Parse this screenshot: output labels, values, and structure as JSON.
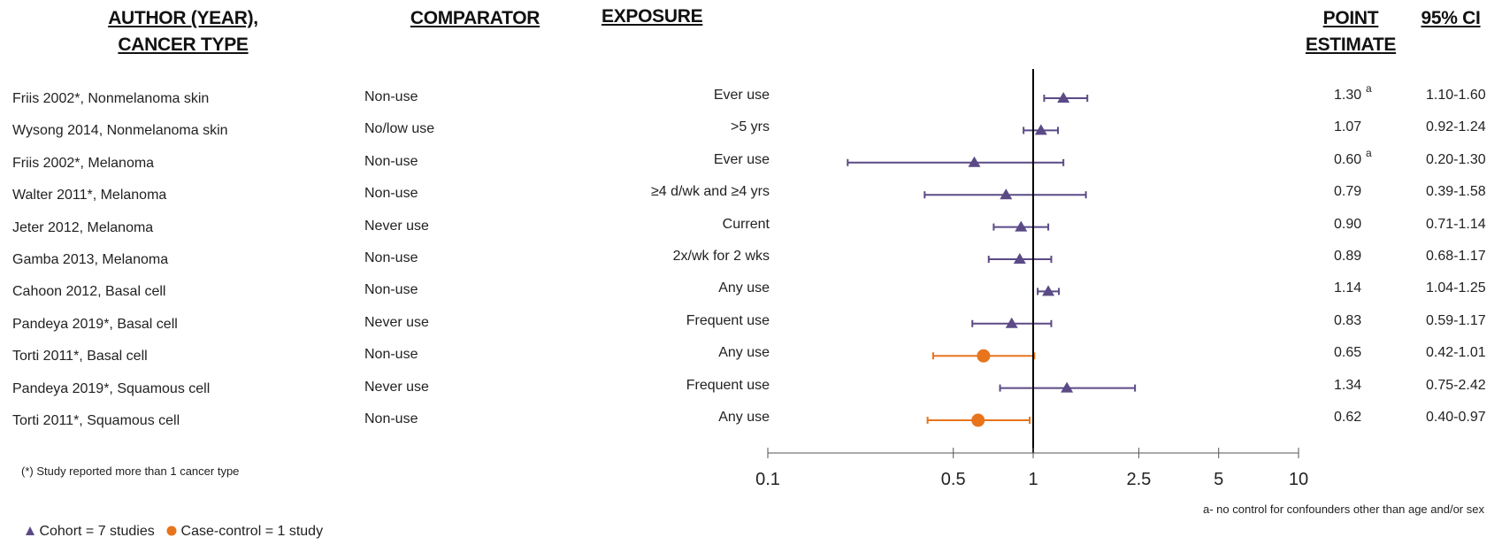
{
  "headers": {
    "author": [
      "AUTHOR (YEAR),",
      "CANCER TYPE"
    ],
    "comparator": "COMPARATOR",
    "exposure": "EXPOSURE",
    "point_estimate": [
      "POINT",
      "ESTIMATE"
    ],
    "ci": "95% CI"
  },
  "footnote_star": "(*) Study reported more than 1 cancer type",
  "footnote_a": "a- no control for confounders other than age and/or sex",
  "legend": {
    "cohort": "Cohort = 7 studies",
    "case_control": "Case-control = 1 study"
  },
  "colors": {
    "cohort": "#5b4a86",
    "case_control": "#e8741c",
    "axis": "#555555",
    "ref_line": "#000000"
  },
  "chart_data": {
    "type": "forest",
    "x_scale": "log",
    "xlim": [
      0.1,
      10
    ],
    "reference_line": 1,
    "x_ticks": [
      "0.1",
      "0.5",
      "1",
      "2.5",
      "5",
      "10"
    ],
    "x_tick_values": [
      0.1,
      0.5,
      1,
      2.5,
      5,
      10
    ],
    "rows": [
      {
        "study": "Friis 2002*, Nonmelanoma skin",
        "comparator": "Non-use",
        "exposure": "Ever use",
        "estimate": 1.3,
        "estimate_label": "1.30",
        "ci_label": "1.10-1.60",
        "lower": 1.1,
        "upper": 1.6,
        "design": "cohort",
        "note": "a"
      },
      {
        "study": "Wysong 2014, Nonmelanoma skin",
        "comparator": "No/low use",
        "exposure": ">5 yrs",
        "estimate": 1.07,
        "estimate_label": "1.07",
        "ci_label": "0.92-1.24",
        "lower": 0.92,
        "upper": 1.24,
        "design": "cohort",
        "note": ""
      },
      {
        "study": "Friis 2002*, Melanoma",
        "comparator": "Non-use",
        "exposure": "Ever use",
        "estimate": 0.6,
        "estimate_label": "0.60",
        "ci_label": "0.20-1.30",
        "lower": 0.2,
        "upper": 1.3,
        "design": "cohort",
        "note": "a"
      },
      {
        "study": "Walter 2011*, Melanoma",
        "comparator": "Non-use",
        "exposure": "≥4 d/wk and ≥4 yrs",
        "estimate": 0.79,
        "estimate_label": "0.79",
        "ci_label": "0.39-1.58",
        "lower": 0.39,
        "upper": 1.58,
        "design": "cohort",
        "note": ""
      },
      {
        "study": "Jeter 2012, Melanoma",
        "comparator": "Never use",
        "exposure": "Current",
        "estimate": 0.9,
        "estimate_label": "0.90",
        "ci_label": "0.71-1.14",
        "lower": 0.71,
        "upper": 1.14,
        "design": "cohort",
        "note": ""
      },
      {
        "study": "Gamba 2013, Melanoma",
        "comparator": "Non-use",
        "exposure": "2x/wk for 2 wks",
        "estimate": 0.89,
        "estimate_label": "0.89",
        "ci_label": "0.68-1.17",
        "lower": 0.68,
        "upper": 1.17,
        "design": "cohort",
        "note": ""
      },
      {
        "study": "Cahoon 2012, Basal cell",
        "comparator": "Non-use",
        "exposure": "Any use",
        "estimate": 1.14,
        "estimate_label": "1.14",
        "ci_label": "1.04-1.25",
        "lower": 1.04,
        "upper": 1.25,
        "design": "cohort",
        "note": ""
      },
      {
        "study": "Pandeya 2019*, Basal cell",
        "comparator": "Never use",
        "exposure": "Frequent use",
        "estimate": 0.83,
        "estimate_label": "0.83",
        "ci_label": "0.59-1.17",
        "lower": 0.59,
        "upper": 1.17,
        "design": "cohort",
        "note": ""
      },
      {
        "study": "Torti 2011*, Basal cell",
        "comparator": "Non-use",
        "exposure": "Any use",
        "estimate": 0.65,
        "estimate_label": "0.65",
        "ci_label": "0.42-1.01",
        "lower": 0.42,
        "upper": 1.01,
        "design": "case-control",
        "note": ""
      },
      {
        "study": "Pandeya 2019*, Squamous cell",
        "comparator": "Never use",
        "exposure": "Frequent use",
        "estimate": 1.34,
        "estimate_label": "1.34",
        "ci_label": "0.75-2.42",
        "lower": 0.75,
        "upper": 2.42,
        "design": "cohort",
        "note": ""
      },
      {
        "study": "Torti 2011*, Squamous cell",
        "comparator": "Non-use",
        "exposure": "Any use",
        "estimate": 0.62,
        "estimate_label": "0.62",
        "ci_label": "0.40-0.97",
        "lower": 0.4,
        "upper": 0.97,
        "design": "case-control",
        "note": ""
      }
    ]
  }
}
